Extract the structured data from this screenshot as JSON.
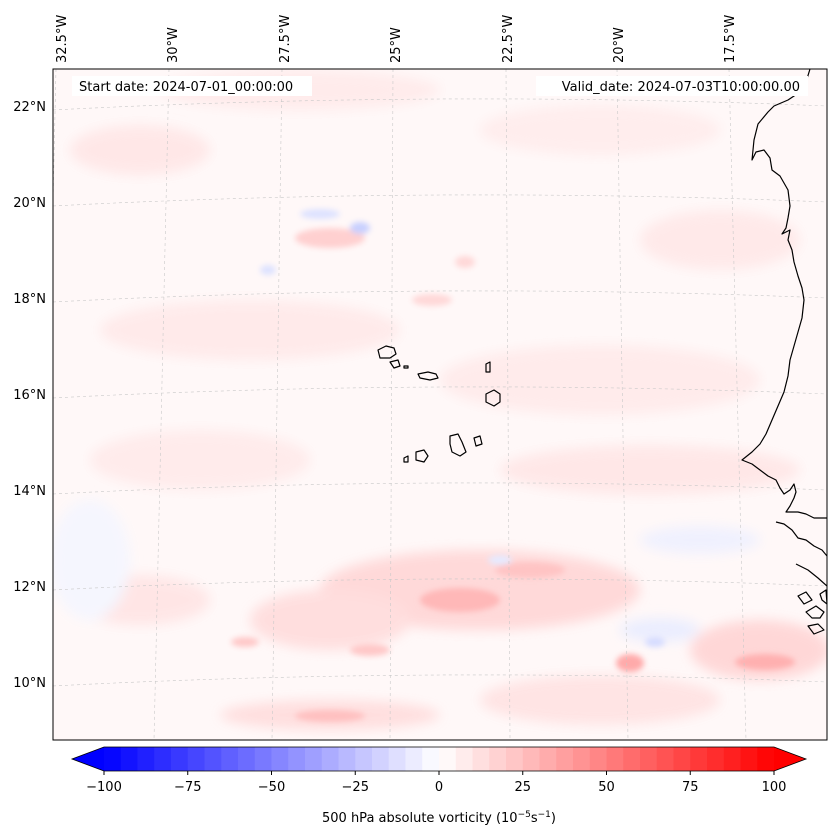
{
  "map": {
    "start_label": "Start date: 2024-07-01_00:00:00",
    "valid_label": "Valid_date: 2024-07-03T10:00:00.00",
    "lon_labels": [
      "32.5°W",
      "30°W",
      "27.5°W",
      "25°W",
      "22.5°W",
      "20°W",
      "17.5°W"
    ],
    "lat_labels": [
      "22°N",
      "20°N",
      "18°N",
      "16°N",
      "14°N",
      "12°N",
      "10°N"
    ]
  },
  "colorbar": {
    "title": "500 hPa absolute vorticity (10",
    "title_sup1": "−5",
    "title_mid": "s",
    "title_sup2": "−1",
    "title_end": ")",
    "ticks": [
      "−100",
      "−75",
      "−50",
      "−25",
      "0",
      "25",
      "50",
      "75",
      "100"
    ],
    "range": [
      -100,
      100
    ],
    "levels": 40,
    "neg_color": "#0000ff",
    "pos_color": "#ff0000",
    "mid_color": "#ffffff"
  },
  "colors": {
    "coast": "#000000",
    "grid": "#c8c8c8"
  }
}
